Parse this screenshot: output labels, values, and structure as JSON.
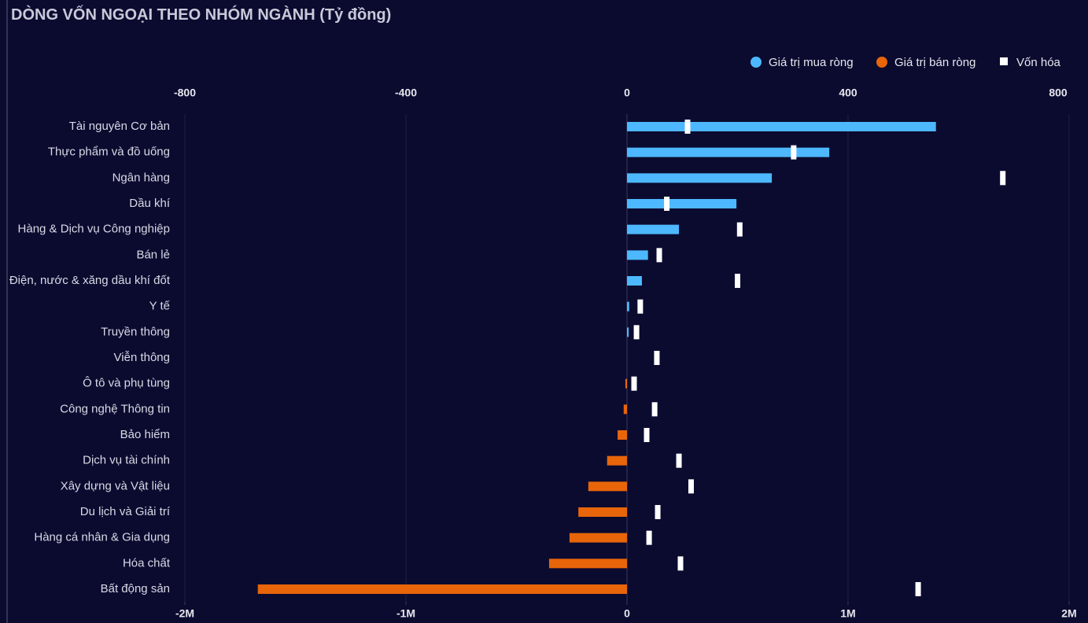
{
  "chart_data": {
    "type": "hbar",
    "title": "DÒNG VỐN NGOẠI THEO NHÓM NGÀNH (Tỷ đồng)",
    "categories": [
      "Tài nguyên Cơ bản",
      "Thực phẩm và đồ uống",
      "Ngân hàng",
      "Dầu khí",
      "Hàng & Dịch vụ Công nghiệp",
      "Bán lẻ",
      "Điện, nước & xăng dầu khí đốt",
      "Y tế",
      "Truyền thông",
      "Viễn thông",
      "Ô tô và phụ tùng",
      "Công nghệ Thông tin",
      "Bảo hiểm",
      "Dịch vụ tài chính",
      "Xây dựng và Vật liệu",
      "Du lịch và Giải trí",
      "Hàng cá nhân & Gia dụng",
      "Hóa chất",
      "Bất động sản"
    ],
    "series": [
      {
        "name": "Giá trị mua ròng",
        "color": "#4db8ff",
        "values": [
          559,
          366,
          262,
          198,
          94,
          38,
          27,
          4,
          3,
          0,
          null,
          null,
          null,
          null,
          null,
          null,
          null,
          null,
          null
        ]
      },
      {
        "name": "Giá trị bán ròng",
        "color": "#e8650a",
        "values": [
          null,
          null,
          null,
          null,
          null,
          null,
          null,
          null,
          null,
          null,
          -3,
          -6,
          -17,
          -36,
          -70,
          -88,
          -104,
          -141,
          -668
        ]
      },
      {
        "name": "Vốn hóa",
        "color": "#ffffff",
        "axis": "x2",
        "values": [
          274000,
          754000,
          1700000,
          180000,
          510000,
          146000,
          500000,
          60000,
          43000,
          135000,
          32000,
          125000,
          89000,
          235000,
          290000,
          139000,
          100000,
          242000,
          1317000
        ]
      }
    ],
    "xlim": [
      -800,
      800
    ],
    "xticks": [
      -800,
      -400,
      0,
      400,
      800
    ],
    "x2lim": [
      -2000000,
      2000000
    ],
    "x2ticks": [
      {
        "value": -2000000,
        "label": "-2M"
      },
      {
        "value": -1000000,
        "label": "-1M"
      },
      0,
      {
        "value": 1000000,
        "label": "1M"
      },
      {
        "value": 2000000,
        "label": "2M"
      }
    ],
    "grid": true,
    "legend": "top-right"
  }
}
